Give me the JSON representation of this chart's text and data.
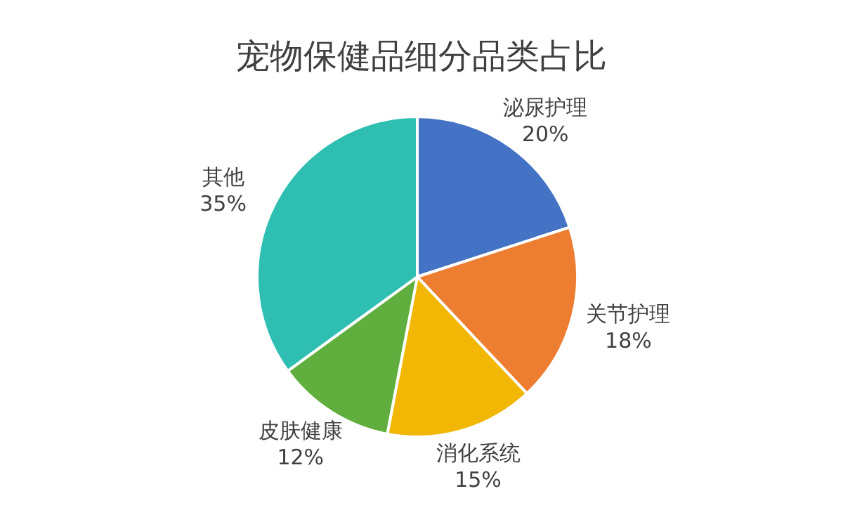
{
  "chart_data": {
    "type": "pie",
    "title": "宠物保健品细分品类占比",
    "categories": [
      "泌尿护理",
      "关节护理",
      "消化系统",
      "皮肤健康",
      "其他"
    ],
    "values": [
      20,
      18,
      15,
      12,
      35
    ],
    "colors": [
      "#4472c4",
      "#ed7d31",
      "#f2b705",
      "#5fae3e",
      "#2ebfb2"
    ],
    "value_labels": [
      "20%",
      "18%",
      "15%",
      "12%",
      "35%"
    ]
  }
}
